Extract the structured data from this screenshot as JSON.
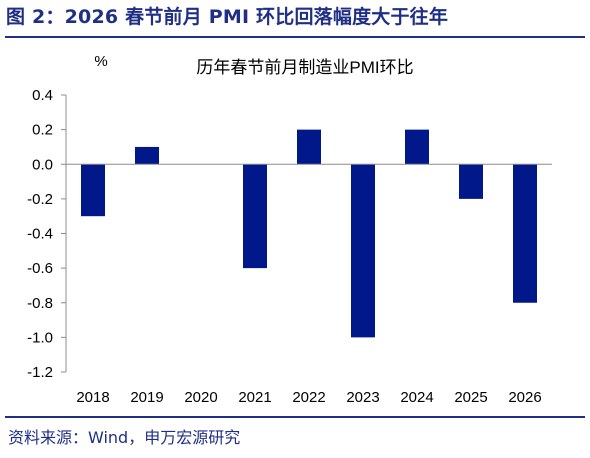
{
  "figure": {
    "title": "图 2：2026 春节前月 PMI 环比回落幅度大于往年",
    "source": "资料来源：Wind，申万宏源研究"
  },
  "chart_data": {
    "type": "bar",
    "title": "历年春节前月制造业PMI环比",
    "unit_label": "%",
    "categories": [
      "2018",
      "2019",
      "2020",
      "2021",
      "2022",
      "2023",
      "2024",
      "2025",
      "2026"
    ],
    "series": [
      {
        "values": [
          -0.3,
          0.1,
          null,
          -0.6,
          0.2,
          -1.0,
          0.2,
          -0.2,
          -0.8
        ]
      }
    ],
    "ylim": [
      -1.2,
      0.4
    ],
    "yticks": [
      "0.4",
      "0.2",
      "0.0",
      "-0.2",
      "-0.4",
      "-0.6",
      "-0.8",
      "-1.0",
      "-1.2"
    ],
    "grid": false,
    "legend": "none",
    "bar_color": "#00188a"
  }
}
